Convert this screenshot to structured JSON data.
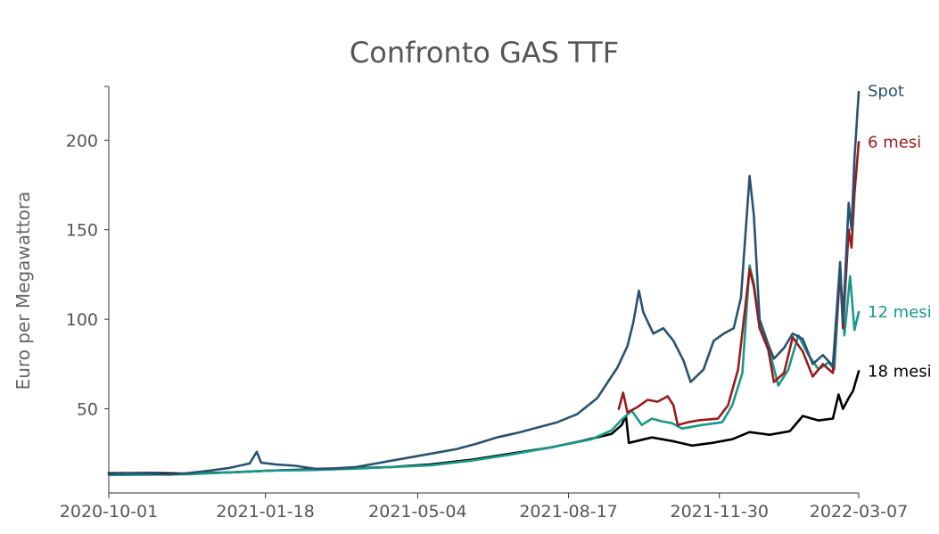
{
  "chart_data": {
    "type": "line",
    "title": "Confronto GAS TTF",
    "xlabel": "",
    "ylabel": "Euro per Megawattora",
    "x_tick_labels": [
      "2020-10-01",
      "2021-01-18",
      "2021-05-04",
      "2021-08-17",
      "2021-11-30",
      "2022-03-07"
    ],
    "x_range": [
      "2020-10-01",
      "2022-03-07"
    ],
    "y_ticks": [
      50,
      100,
      150,
      200
    ],
    "ylim": [
      3,
      230
    ],
    "grid": false,
    "legend": "direct labels at right end of lines",
    "series": [
      {
        "name": "Spot",
        "color": "#2a5270",
        "points": [
          [
            "2020-10-01",
            13.5
          ],
          [
            "2020-10-15",
            14.0
          ],
          [
            "2020-10-29",
            13.8
          ],
          [
            "2020-11-12",
            13.2
          ],
          [
            "2020-11-26",
            14.2
          ],
          [
            "2020-12-10",
            15.5
          ],
          [
            "2020-12-24",
            17.0
          ],
          [
            "2021-01-07",
            19.5
          ],
          [
            "2021-01-12",
            26.0
          ],
          [
            "2021-01-15",
            20.0
          ],
          [
            "2021-01-25",
            19.0
          ],
          [
            "2021-02-08",
            18.2
          ],
          [
            "2021-02-22",
            16.5
          ],
          [
            "2021-03-08",
            16.8
          ],
          [
            "2021-03-22",
            17.5
          ],
          [
            "2021-04-05",
            19.5
          ],
          [
            "2021-04-19",
            21.5
          ],
          [
            "2021-05-03",
            23.5
          ],
          [
            "2021-05-17",
            25.5
          ],
          [
            "2021-05-31",
            27.5
          ],
          [
            "2021-06-14",
            30.5
          ],
          [
            "2021-06-28",
            34.0
          ],
          [
            "2021-07-12",
            36.5
          ],
          [
            "2021-07-26",
            39.5
          ],
          [
            "2021-08-09",
            42.5
          ],
          [
            "2021-08-23",
            47.0
          ],
          [
            "2021-09-06",
            56.0
          ],
          [
            "2021-09-20",
            73.0
          ],
          [
            "2021-09-27",
            85.0
          ],
          [
            "2021-10-01",
            98.0
          ],
          [
            "2021-10-05",
            116.0
          ],
          [
            "2021-10-08",
            104.0
          ],
          [
            "2021-10-15",
            92.0
          ],
          [
            "2021-10-22",
            95.0
          ],
          [
            "2021-10-29",
            88.0
          ],
          [
            "2021-11-05",
            77.0
          ],
          [
            "2021-11-10",
            65.0
          ],
          [
            "2021-11-19",
            72.0
          ],
          [
            "2021-11-26",
            88.0
          ],
          [
            "2021-12-03",
            92.0
          ],
          [
            "2021-12-10",
            95.0
          ],
          [
            "2021-12-15",
            112.0
          ],
          [
            "2021-12-21",
            180.0
          ],
          [
            "2021-12-24",
            158.0
          ],
          [
            "2021-12-28",
            100.0
          ],
          [
            "2022-01-03",
            86.0
          ],
          [
            "2022-01-07",
            78.0
          ],
          [
            "2022-01-14",
            84.0
          ],
          [
            "2022-01-20",
            92.0
          ],
          [
            "2022-01-27",
            89.0
          ],
          [
            "2022-02-03",
            75.0
          ],
          [
            "2022-02-10",
            80.0
          ],
          [
            "2022-02-17",
            74.0
          ],
          [
            "2022-02-22",
            132.0
          ],
          [
            "2022-02-24",
            98.0
          ],
          [
            "2022-02-28",
            165.0
          ],
          [
            "2022-03-02",
            150.0
          ],
          [
            "2022-03-04",
            190.0
          ],
          [
            "2022-03-07",
            227.0
          ]
        ]
      },
      {
        "name": "6 mesi",
        "color": "#9b1b1b",
        "points": [
          [
            "2021-09-21",
            50.0
          ],
          [
            "2021-09-24",
            59.0
          ],
          [
            "2021-09-27",
            48.0
          ],
          [
            "2021-10-04",
            51.0
          ],
          [
            "2021-10-11",
            55.0
          ],
          [
            "2021-10-18",
            54.0
          ],
          [
            "2021-10-25",
            57.0
          ],
          [
            "2021-10-29",
            52.0
          ],
          [
            "2021-11-01",
            41.0
          ],
          [
            "2021-11-08",
            42.5
          ],
          [
            "2021-11-15",
            43.5
          ],
          [
            "2021-11-22",
            44.0
          ],
          [
            "2021-11-29",
            44.5
          ],
          [
            "2021-12-06",
            52.0
          ],
          [
            "2021-12-13",
            72.0
          ],
          [
            "2021-12-21",
            128.0
          ],
          [
            "2021-12-24",
            118.0
          ],
          [
            "2021-12-28",
            95.0
          ],
          [
            "2022-01-03",
            83.0
          ],
          [
            "2022-01-07",
            65.0
          ],
          [
            "2022-01-14",
            70.0
          ],
          [
            "2022-01-20",
            90.0
          ],
          [
            "2022-01-27",
            82.0
          ],
          [
            "2022-02-03",
            68.0
          ],
          [
            "2022-02-10",
            75.0
          ],
          [
            "2022-02-17",
            70.0
          ],
          [
            "2022-02-22",
            128.0
          ],
          [
            "2022-02-24",
            95.0
          ],
          [
            "2022-02-28",
            150.0
          ],
          [
            "2022-03-02",
            140.0
          ],
          [
            "2022-03-04",
            170.0
          ],
          [
            "2022-03-07",
            199.0
          ]
        ]
      },
      {
        "name": "12 mesi",
        "color": "#17998a",
        "points": [
          [
            "2020-10-01",
            13.0
          ],
          [
            "2020-10-29",
            13.2
          ],
          [
            "2020-11-26",
            13.5
          ],
          [
            "2020-12-24",
            14.5
          ],
          [
            "2021-01-21",
            15.5
          ],
          [
            "2021-02-18",
            15.8
          ],
          [
            "2021-03-18",
            16.5
          ],
          [
            "2021-04-15",
            17.5
          ],
          [
            "2021-05-13",
            18.5
          ],
          [
            "2021-06-10",
            21.0
          ],
          [
            "2021-07-08",
            24.5
          ],
          [
            "2021-08-05",
            28.5
          ],
          [
            "2021-09-02",
            33.0
          ],
          [
            "2021-09-16",
            38.0
          ],
          [
            "2021-09-23",
            44.0
          ],
          [
            "2021-09-30",
            49.0
          ],
          [
            "2021-10-07",
            41.0
          ],
          [
            "2021-10-14",
            44.5
          ],
          [
            "2021-10-21",
            43.0
          ],
          [
            "2021-10-28",
            42.0
          ],
          [
            "2021-11-04",
            39.0
          ],
          [
            "2021-11-18",
            41.0
          ],
          [
            "2021-12-02",
            42.5
          ],
          [
            "2021-12-09",
            52.0
          ],
          [
            "2021-12-16",
            70.0
          ],
          [
            "2021-12-21",
            130.0
          ],
          [
            "2021-12-24",
            120.0
          ],
          [
            "2021-12-28",
            96.0
          ],
          [
            "2022-01-04",
            82.0
          ],
          [
            "2022-01-10",
            63.0
          ],
          [
            "2022-01-17",
            72.0
          ],
          [
            "2022-01-24",
            91.0
          ],
          [
            "2022-01-31",
            80.0
          ],
          [
            "2022-02-07",
            72.0
          ],
          [
            "2022-02-14",
            76.0
          ],
          [
            "2022-02-18",
            72.0
          ],
          [
            "2022-02-22",
            128.0
          ],
          [
            "2022-02-25",
            91.0
          ],
          [
            "2022-03-01",
            124.0
          ],
          [
            "2022-03-04",
            94.0
          ],
          [
            "2022-03-07",
            104.0
          ]
        ]
      },
      {
        "name": "18 mesi",
        "color": "#000000",
        "points": [
          [
            "2020-10-01",
            14.0
          ],
          [
            "2020-10-29",
            14.2
          ],
          [
            "2020-11-26",
            13.8
          ],
          [
            "2020-12-24",
            14.5
          ],
          [
            "2021-01-21",
            15.5
          ],
          [
            "2021-02-18",
            16.2
          ],
          [
            "2021-03-18",
            16.8
          ],
          [
            "2021-04-15",
            17.5
          ],
          [
            "2021-05-13",
            19.0
          ],
          [
            "2021-06-10",
            21.5
          ],
          [
            "2021-07-08",
            25.0
          ],
          [
            "2021-08-05",
            28.5
          ],
          [
            "2021-08-26",
            32.0
          ],
          [
            "2021-09-16",
            36.0
          ],
          [
            "2021-09-23",
            41.0
          ],
          [
            "2021-09-26",
            46.0
          ],
          [
            "2021-09-28",
            31.0
          ],
          [
            "2021-10-14",
            34.0
          ],
          [
            "2021-10-28",
            32.0
          ],
          [
            "2021-11-11",
            29.5
          ],
          [
            "2021-11-25",
            31.0
          ],
          [
            "2021-12-09",
            33.0
          ],
          [
            "2021-12-21",
            37.0
          ],
          [
            "2022-01-04",
            35.5
          ],
          [
            "2022-01-18",
            37.5
          ],
          [
            "2022-01-27",
            46.0
          ],
          [
            "2022-02-07",
            43.5
          ],
          [
            "2022-02-17",
            44.5
          ],
          [
            "2022-02-21",
            58.0
          ],
          [
            "2022-02-24",
            50.0
          ],
          [
            "2022-02-28",
            56.0
          ],
          [
            "2022-03-03",
            60.0
          ],
          [
            "2022-03-07",
            71.0
          ]
        ]
      }
    ]
  }
}
